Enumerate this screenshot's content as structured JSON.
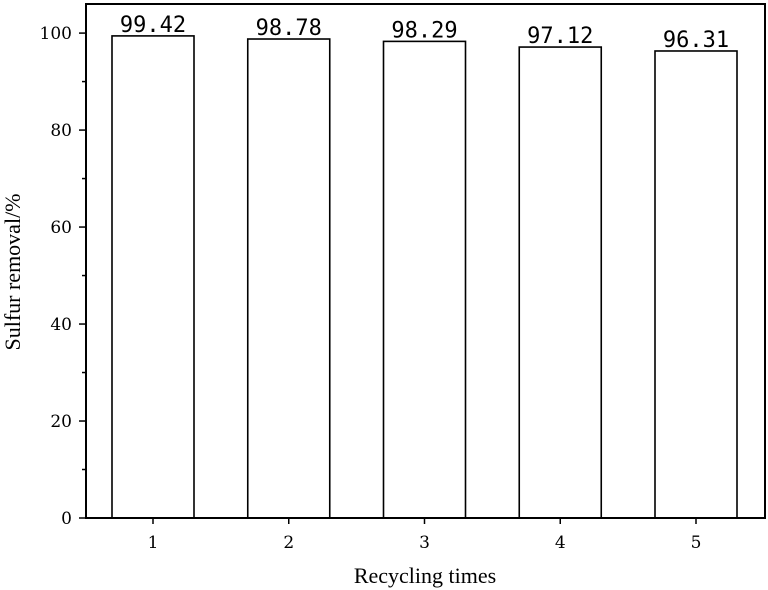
{
  "chart_data": {
    "type": "bar",
    "categories": [
      "1",
      "2",
      "3",
      "4",
      "5"
    ],
    "values": [
      99.42,
      98.78,
      98.29,
      97.12,
      96.31
    ],
    "data_labels": [
      "99.42",
      "98.78",
      "98.29",
      "97.12",
      "96.31"
    ],
    "title": "",
    "xlabel": "Recycling times",
    "ylabel": "Sulfur removal/%",
    "ylim": [
      0,
      106
    ],
    "yticks": [
      0,
      20,
      40,
      60,
      80,
      100
    ],
    "grid": false,
    "legend": "none",
    "bar_fill": "#ffffff",
    "bar_edge": "#000000"
  }
}
